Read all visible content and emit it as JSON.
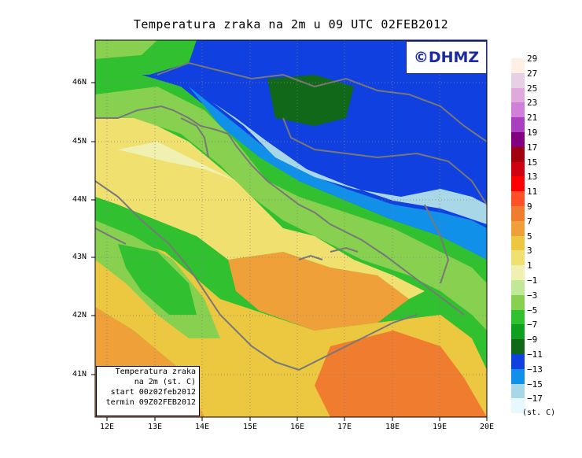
{
  "title": "Temperatura zraka na 2m u 09 UTC 02FEB2012",
  "copyright": "©DHMZ",
  "info_box": {
    "line1": "Temperatura zraka",
    "line2": "na 2m (st. C)",
    "line3": "start 00z02feb2012",
    "line4": "termin 09Z02FEB2012"
  },
  "lat_labels": [
    "46N",
    "45N",
    "44N",
    "43N",
    "42N",
    "41N"
  ],
  "lon_labels": [
    "12E",
    "13E",
    "14E",
    "15E",
    "16E",
    "17E",
    "18E",
    "19E",
    "20E"
  ],
  "legend": {
    "unit": "(st. C)",
    "labels": [
      "29",
      "27",
      "25",
      "23",
      "21",
      "19",
      "17",
      "15",
      "13",
      "11",
      "9",
      "7",
      "5",
      "3",
      "1",
      "−1",
      "−3",
      "−5",
      "−7",
      "−9",
      "−11",
      "−13",
      "−15",
      "−17"
    ],
    "colors": [
      "#fff0e6",
      "#e8d0e4",
      "#e0a8dc",
      "#d080d8",
      "#a840c0",
      "#800080",
      "#a00010",
      "#d00010",
      "#ff0000",
      "#ff5028",
      "#f07c30",
      "#f0a038",
      "#ecc840",
      "#f0e070",
      "#f0f0b0",
      "#c0e898",
      "#88d050",
      "#30c030",
      "#10a020",
      "#106818",
      "#1040e0",
      "#1090e8",
      "#a8d8e8",
      "#e8f8ff"
    ]
  },
  "colors": {
    "coast": "#787878",
    "grid": "#808080",
    "brand": "#1a2aa0"
  }
}
